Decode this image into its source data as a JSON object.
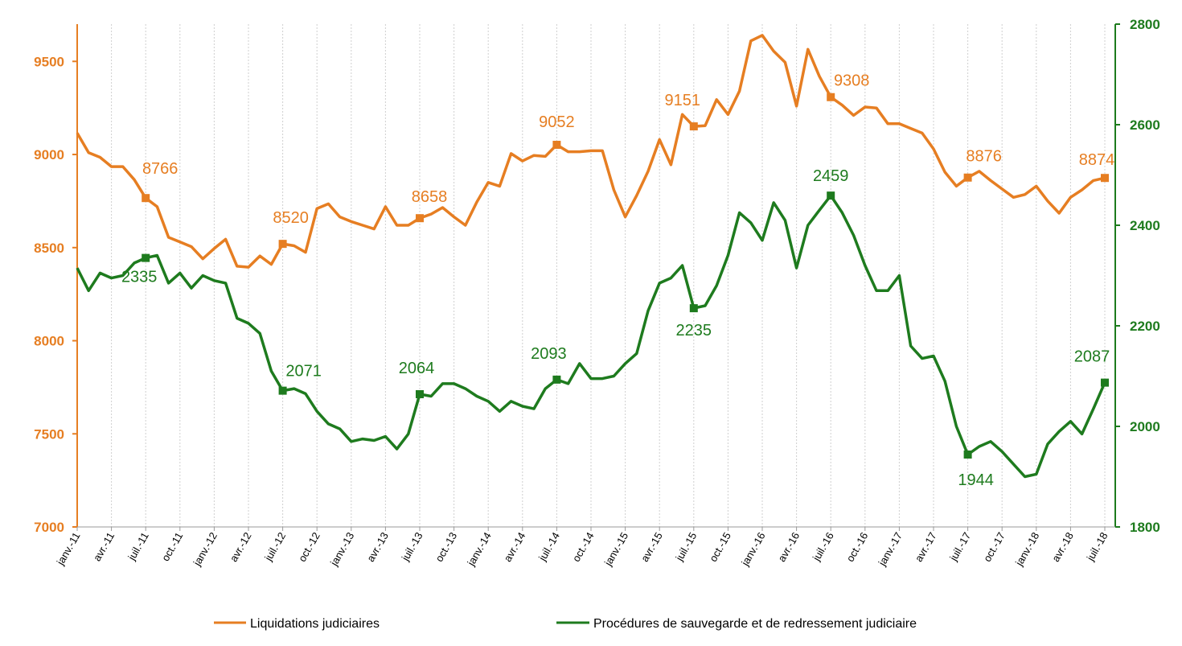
{
  "chart_data": {
    "type": "line",
    "xlabel": "",
    "ylabel": "",
    "y_left": {
      "min": 7000,
      "max": 9700,
      "ticks": [
        7000,
        7500,
        8000,
        8500,
        9000,
        9500
      ],
      "color": "#E67E22"
    },
    "y_right": {
      "min": 1800,
      "max": 2800,
      "ticks": [
        1800,
        2000,
        2200,
        2400,
        2600,
        2800
      ],
      "color": "#1E7B1E"
    },
    "x_ticks": [
      "janv.-11",
      "avr.-11",
      "juil.-11",
      "oct.-11",
      "janv.-12",
      "avr.-12",
      "juil.-12",
      "oct.-12",
      "janv.-13",
      "avr.-13",
      "juil.-13",
      "oct.-13",
      "janv.-14",
      "avr.-14",
      "juil.-14",
      "oct.-14",
      "janv.-15",
      "avr.-15",
      "juil.-15",
      "oct.-15",
      "janv.-16",
      "avr.-16",
      "juil.-16",
      "oct.-16",
      "janv.-17",
      "avr.-17",
      "juil.-17",
      "oct.-17",
      "janv.-18",
      "avr.-18",
      "juil.-18"
    ],
    "grid": "vertical dashed",
    "legend_position": "bottom",
    "series": [
      {
        "name": "Liquidations judiciaires",
        "axis": "left",
        "color": "#E67E22",
        "values": [
          9115,
          9010,
          8985,
          8935,
          8935,
          8865,
          8766,
          8720,
          8555,
          8530,
          8505,
          8440,
          8495,
          8545,
          8400,
          8395,
          8455,
          8410,
          8520,
          8510,
          8475,
          8710,
          8735,
          8665,
          8640,
          8620,
          8600,
          8720,
          8620,
          8620,
          8658,
          8680,
          8715,
          8665,
          8620,
          8745,
          8850,
          8830,
          9005,
          8965,
          8995,
          8990,
          9052,
          9015,
          9015,
          9020,
          9020,
          8810,
          8665,
          8780,
          8910,
          9080,
          8945,
          9215,
          9151,
          9155,
          9295,
          9215,
          9340,
          9610,
          9640,
          9555,
          9495,
          9260,
          9565,
          9420,
          9308,
          9265,
          9210,
          9255,
          9250,
          9165,
          9165,
          9140,
          9115,
          9030,
          8905,
          8830,
          8876,
          8910,
          8860,
          8815,
          8770,
          8785,
          8830,
          8750,
          8685,
          8770,
          8810,
          8860,
          8874
        ],
        "labels": [
          {
            "index": 6,
            "text": "8766"
          },
          {
            "index": 18,
            "text": "8520"
          },
          {
            "index": 30,
            "text": "8658"
          },
          {
            "index": 42,
            "text": "9052"
          },
          {
            "index": 54,
            "text": "9151"
          },
          {
            "index": 66,
            "text": "9308"
          },
          {
            "index": 78,
            "text": "8876"
          },
          {
            "index": 90,
            "text": "8874"
          }
        ]
      },
      {
        "name": "Procédures de sauvegarde et de redressement judiciaire",
        "axis": "right",
        "color": "#1E7B1E",
        "values": [
          2315,
          2270,
          2305,
          2295,
          2300,
          2325,
          2335,
          2340,
          2285,
          2305,
          2275,
          2300,
          2290,
          2285,
          2215,
          2205,
          2185,
          2110,
          2071,
          2075,
          2065,
          2030,
          2005,
          1995,
          1970,
          1975,
          1972,
          1980,
          1955,
          1985,
          2064,
          2060,
          2085,
          2085,
          2075,
          2060,
          2050,
          2030,
          2050,
          2040,
          2035,
          2075,
          2093,
          2085,
          2125,
          2095,
          2095,
          2100,
          2125,
          2145,
          2230,
          2285,
          2295,
          2320,
          2235,
          2240,
          2280,
          2340,
          2425,
          2405,
          2370,
          2445,
          2410,
          2315,
          2400,
          2430,
          2459,
          2425,
          2380,
          2320,
          2270,
          2270,
          2300,
          2160,
          2135,
          2140,
          2090,
          2000,
          1944,
          1960,
          1970,
          1950,
          1925,
          1900,
          1905,
          1965,
          1990,
          2010,
          1985,
          2035,
          2087
        ],
        "labels": [
          {
            "index": 6,
            "text": "2335"
          },
          {
            "index": 18,
            "text": "2071"
          },
          {
            "index": 30,
            "text": "2064"
          },
          {
            "index": 42,
            "text": "2093"
          },
          {
            "index": 54,
            "text": "2235"
          },
          {
            "index": 66,
            "text": "2459"
          },
          {
            "index": 78,
            "text": "1944"
          },
          {
            "index": 90,
            "text": "2087"
          }
        ]
      }
    ]
  }
}
